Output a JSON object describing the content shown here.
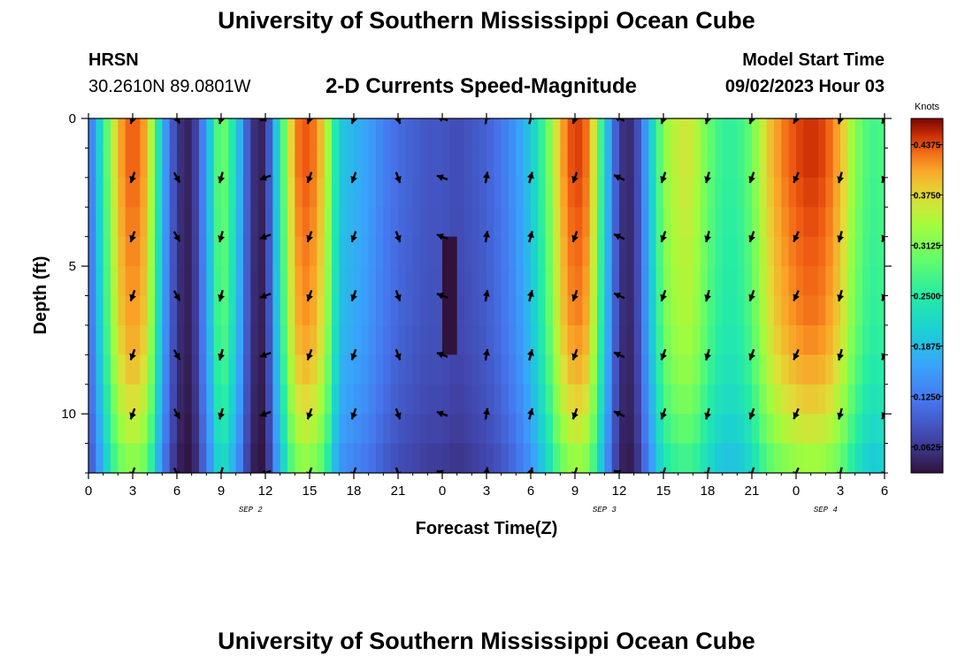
{
  "page": {
    "title_top": "University of Southern Mississippi Ocean Cube",
    "title_bottom": "University of Southern Mississippi Ocean Cube",
    "station_name": "HRSN",
    "station_coords": "30.2610N  89.0801W",
    "model_start_label": "Model Start Time",
    "model_start_value": "09/02/2023 Hour 03"
  },
  "chart_data": {
    "type": "heatmap",
    "title": "2-D Currents Speed-Magnitude",
    "xlabel": "Forecast Time(Z)",
    "ylabel": "Depth (ft)",
    "colorbar_label": "Knots",
    "colorbar_range": [
      0.03,
      0.47
    ],
    "colorbar_ticks": [
      "0.0625",
      "0.1250",
      "0.1875",
      "0.2500",
      "0.3125",
      "0.3750",
      "0.4375"
    ],
    "x_range": [
      0,
      54
    ],
    "x_tick_values": [
      0,
      3,
      6,
      9,
      12,
      15,
      18,
      21,
      24,
      27,
      30,
      33,
      36,
      39,
      42,
      45,
      48,
      51,
      54
    ],
    "x_tick_labels": [
      "0",
      "3",
      "6",
      "9",
      "12",
      "15",
      "18",
      "21",
      "0",
      "3",
      "6",
      "9",
      "12",
      "15",
      "18",
      "21",
      "0",
      "3",
      "6"
    ],
    "y_range": [
      0,
      12
    ],
    "y_tick_values": [
      0,
      5,
      10
    ],
    "y_tick_labels": [
      "0",
      "5",
      "10"
    ],
    "date_labels": [
      {
        "x": 11,
        "text": "SEP 2"
      },
      {
        "x": 35,
        "text": "SEP 3"
      },
      {
        "x": 50,
        "text": "SEP 4"
      }
    ],
    "speed_profile_hourly_knots": [
      0.1,
      0.25,
      0.4,
      0.44,
      0.4,
      0.18,
      0.06,
      0.04,
      0.16,
      0.32,
      0.22,
      0.06,
      0.04,
      0.25,
      0.42,
      0.44,
      0.38,
      0.2,
      0.18,
      0.16,
      0.13,
      0.11,
      0.1,
      0.09,
      0.09,
      0.08,
      0.09,
      0.1,
      0.12,
      0.15,
      0.2,
      0.28,
      0.4,
      0.45,
      0.42,
      0.22,
      0.06,
      0.05,
      0.18,
      0.32,
      0.36,
      0.36,
      0.3,
      0.26,
      0.26,
      0.3,
      0.38,
      0.42,
      0.44,
      0.45,
      0.44,
      0.4,
      0.32,
      0.27,
      0.28
    ],
    "depth_factors": [
      1.0,
      1.0,
      0.99,
      0.98,
      0.97,
      0.96,
      0.95,
      0.93,
      0.9,
      0.86,
      0.81,
      0.75
    ],
    "core_anomaly": {
      "x": 24.5,
      "depth_from": 4.5,
      "depth_to": 8.2,
      "value": 0.03
    },
    "vector_depths": [
      0,
      2,
      4,
      6,
      8,
      10,
      12
    ],
    "vector_times": [
      3,
      6,
      9,
      12,
      15,
      18,
      21,
      24,
      27,
      30,
      33,
      36,
      39,
      42,
      45,
      48,
      51,
      54
    ],
    "vector_directions_deg": [
      200,
      150,
      195,
      250,
      200,
      200,
      160,
      290,
      10,
      15,
      200,
      295,
      200,
      195,
      200,
      205,
      195,
      205
    ]
  }
}
